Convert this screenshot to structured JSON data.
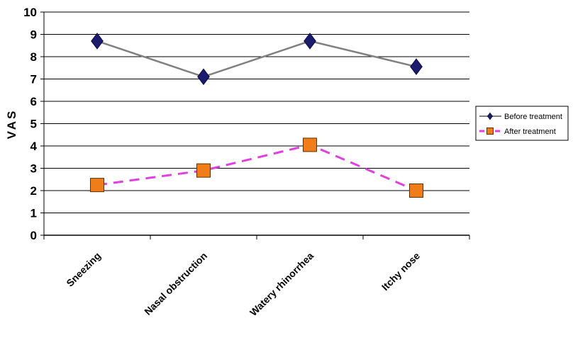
{
  "chart_data": {
    "type": "line",
    "title": "",
    "xlabel": "",
    "ylabel": "VAS",
    "ylim": [
      0,
      10
    ],
    "yticks": [
      "0",
      "1",
      "2",
      "3",
      "4",
      "5",
      "6",
      "7",
      "8",
      "9",
      "10"
    ],
    "grid": "horizontal",
    "legend_position": "right",
    "categories": [
      "Sneezing",
      "Nasal obstruction",
      "Watery rhinorrhea",
      "Itchy nose"
    ],
    "series": [
      {
        "name": "Before treatment",
        "values": [
          8.7,
          7.1,
          8.7,
          7.55
        ],
        "line_color": "#808080",
        "marker_color": "#1c1c6e",
        "marker": "diamond",
        "line_style": "solid"
      },
      {
        "name": "After treatment",
        "values": [
          2.25,
          2.9,
          4.05,
          2.0
        ],
        "line_color": "#e040e0",
        "marker_color": "#f07c1a",
        "marker": "square",
        "line_style": "dashed"
      }
    ]
  }
}
